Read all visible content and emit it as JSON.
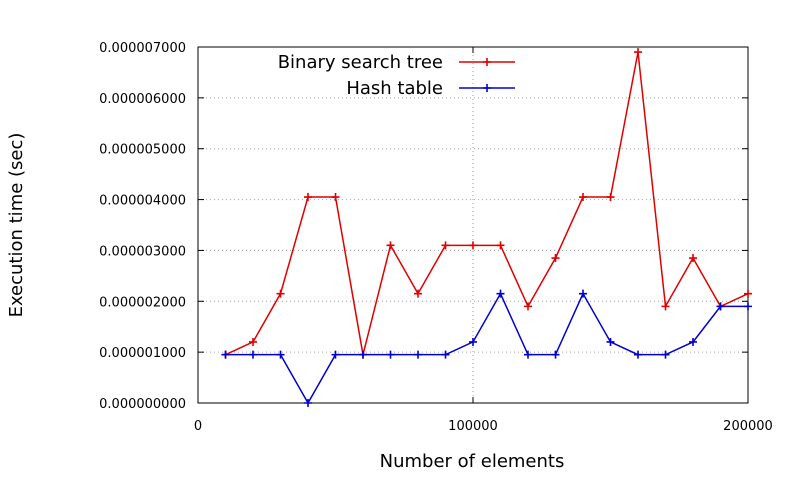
{
  "chart_data": {
    "type": "line",
    "title": "",
    "xlabel": "Number of elements",
    "ylabel": "Execution time (sec)",
    "xlim": [
      0,
      200000
    ],
    "ylim": [
      0,
      7e-06
    ],
    "x_ticks": [
      0,
      100000,
      200000
    ],
    "x_tick_labels": [
      "0",
      "100000",
      "200000"
    ],
    "y_ticks": [
      0,
      1e-06,
      2e-06,
      3e-06,
      4e-06,
      5e-06,
      6e-06,
      7e-06
    ],
    "y_tick_labels": [
      "0.000000000",
      "0.000001000",
      "0.000002000",
      "0.000003000",
      "0.000004000",
      "0.000005000",
      "0.000006000",
      "0.000007000"
    ],
    "grid": true,
    "legend_position": "top-center",
    "x": [
      10000,
      20000,
      30000,
      40000,
      50000,
      60000,
      70000,
      80000,
      90000,
      100000,
      110000,
      120000,
      130000,
      140000,
      150000,
      160000,
      170000,
      180000,
      190000,
      200000
    ],
    "series": [
      {
        "name": "Binary search tree",
        "color": "#e00000",
        "values": [
          9.5e-07,
          1.2e-06,
          2.15e-06,
          4.05e-06,
          4.05e-06,
          9.5e-07,
          3.1e-06,
          2.15e-06,
          3.1e-06,
          3.1e-06,
          3.1e-06,
          1.9e-06,
          2.85e-06,
          4.05e-06,
          4.05e-06,
          6.9e-06,
          1.9e-06,
          2.85e-06,
          1.9e-06,
          2.15e-06
        ]
      },
      {
        "name": "Hash table",
        "color": "#0000d0",
        "values": [
          9.5e-07,
          9.5e-07,
          9.5e-07,
          0.0,
          9.5e-07,
          9.5e-07,
          9.5e-07,
          9.5e-07,
          9.5e-07,
          1.2e-06,
          2.15e-06,
          9.5e-07,
          9.5e-07,
          2.15e-06,
          1.2e-06,
          9.5e-07,
          9.5e-07,
          1.2e-06,
          1.9e-06,
          1.9e-06
        ]
      }
    ]
  }
}
